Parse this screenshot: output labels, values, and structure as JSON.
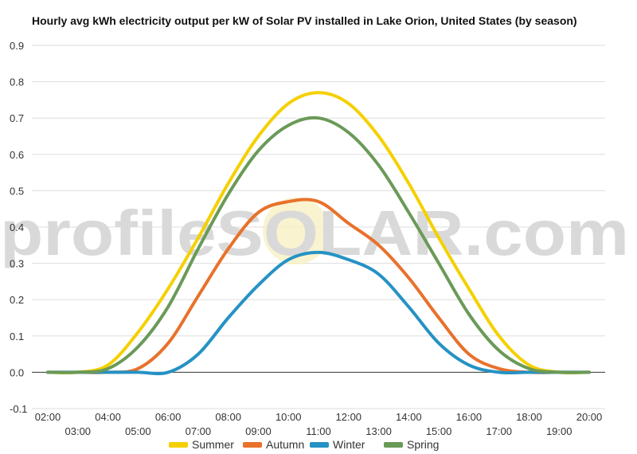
{
  "chart_data": {
    "type": "line",
    "title": "Hourly avg kWh electricity output per kW of Solar PV installed in Lake Orion, United States (by season)",
    "xlabel": "",
    "ylabel": "",
    "x": [
      "02:00",
      "03:00",
      "04:00",
      "05:00",
      "06:00",
      "07:00",
      "08:00",
      "09:00",
      "10:00",
      "11:00",
      "12:00",
      "13:00",
      "14:00",
      "15:00",
      "16:00",
      "17:00",
      "18:00",
      "19:00",
      "20:00"
    ],
    "x_top_labels": [
      "02:00",
      "04:00",
      "06:00",
      "08:00",
      "10:00",
      "12:00",
      "14:00",
      "16:00",
      "18:00",
      "20:00"
    ],
    "x_bottom_labels": [
      "03:00",
      "05:00",
      "07:00",
      "09:00",
      "11:00",
      "13:00",
      "15:00",
      "17:00",
      "19:00"
    ],
    "y_ticks": [
      "0.9",
      "0.8",
      "0.7",
      "0.6",
      "0.5",
      "0.4",
      "0.3",
      "0.2",
      "0.1",
      "0.0",
      "-0.1"
    ],
    "ylim": [
      -0.1,
      0.9
    ],
    "grid": true,
    "legend_position": "bottom",
    "series": [
      {
        "name": "Summer",
        "color": "#f5d000",
        "values": [
          0.0,
          0.0,
          0.02,
          0.11,
          0.23,
          0.37,
          0.52,
          0.65,
          0.74,
          0.77,
          0.74,
          0.65,
          0.52,
          0.37,
          0.23,
          0.1,
          0.02,
          0.0,
          0.0
        ]
      },
      {
        "name": "Autumn",
        "color": "#e8712b",
        "values": [
          0.0,
          0.0,
          0.0,
          0.01,
          0.08,
          0.21,
          0.34,
          0.44,
          0.47,
          0.47,
          0.41,
          0.35,
          0.26,
          0.15,
          0.05,
          0.01,
          0.0,
          0.0,
          0.0
        ]
      },
      {
        "name": "Winter",
        "color": "#2592c4",
        "values": [
          0.0,
          0.0,
          0.0,
          0.0,
          0.0,
          0.05,
          0.15,
          0.24,
          0.31,
          0.33,
          0.31,
          0.27,
          0.18,
          0.08,
          0.02,
          0.0,
          0.0,
          0.0,
          0.0
        ]
      },
      {
        "name": "Spring",
        "color": "#6a9a57",
        "values": [
          0.0,
          0.0,
          0.01,
          0.07,
          0.18,
          0.34,
          0.49,
          0.61,
          0.68,
          0.7,
          0.66,
          0.57,
          0.44,
          0.3,
          0.16,
          0.06,
          0.01,
          0.0,
          0.0
        ]
      }
    ],
    "watermark": "profileSOLAR.com"
  }
}
